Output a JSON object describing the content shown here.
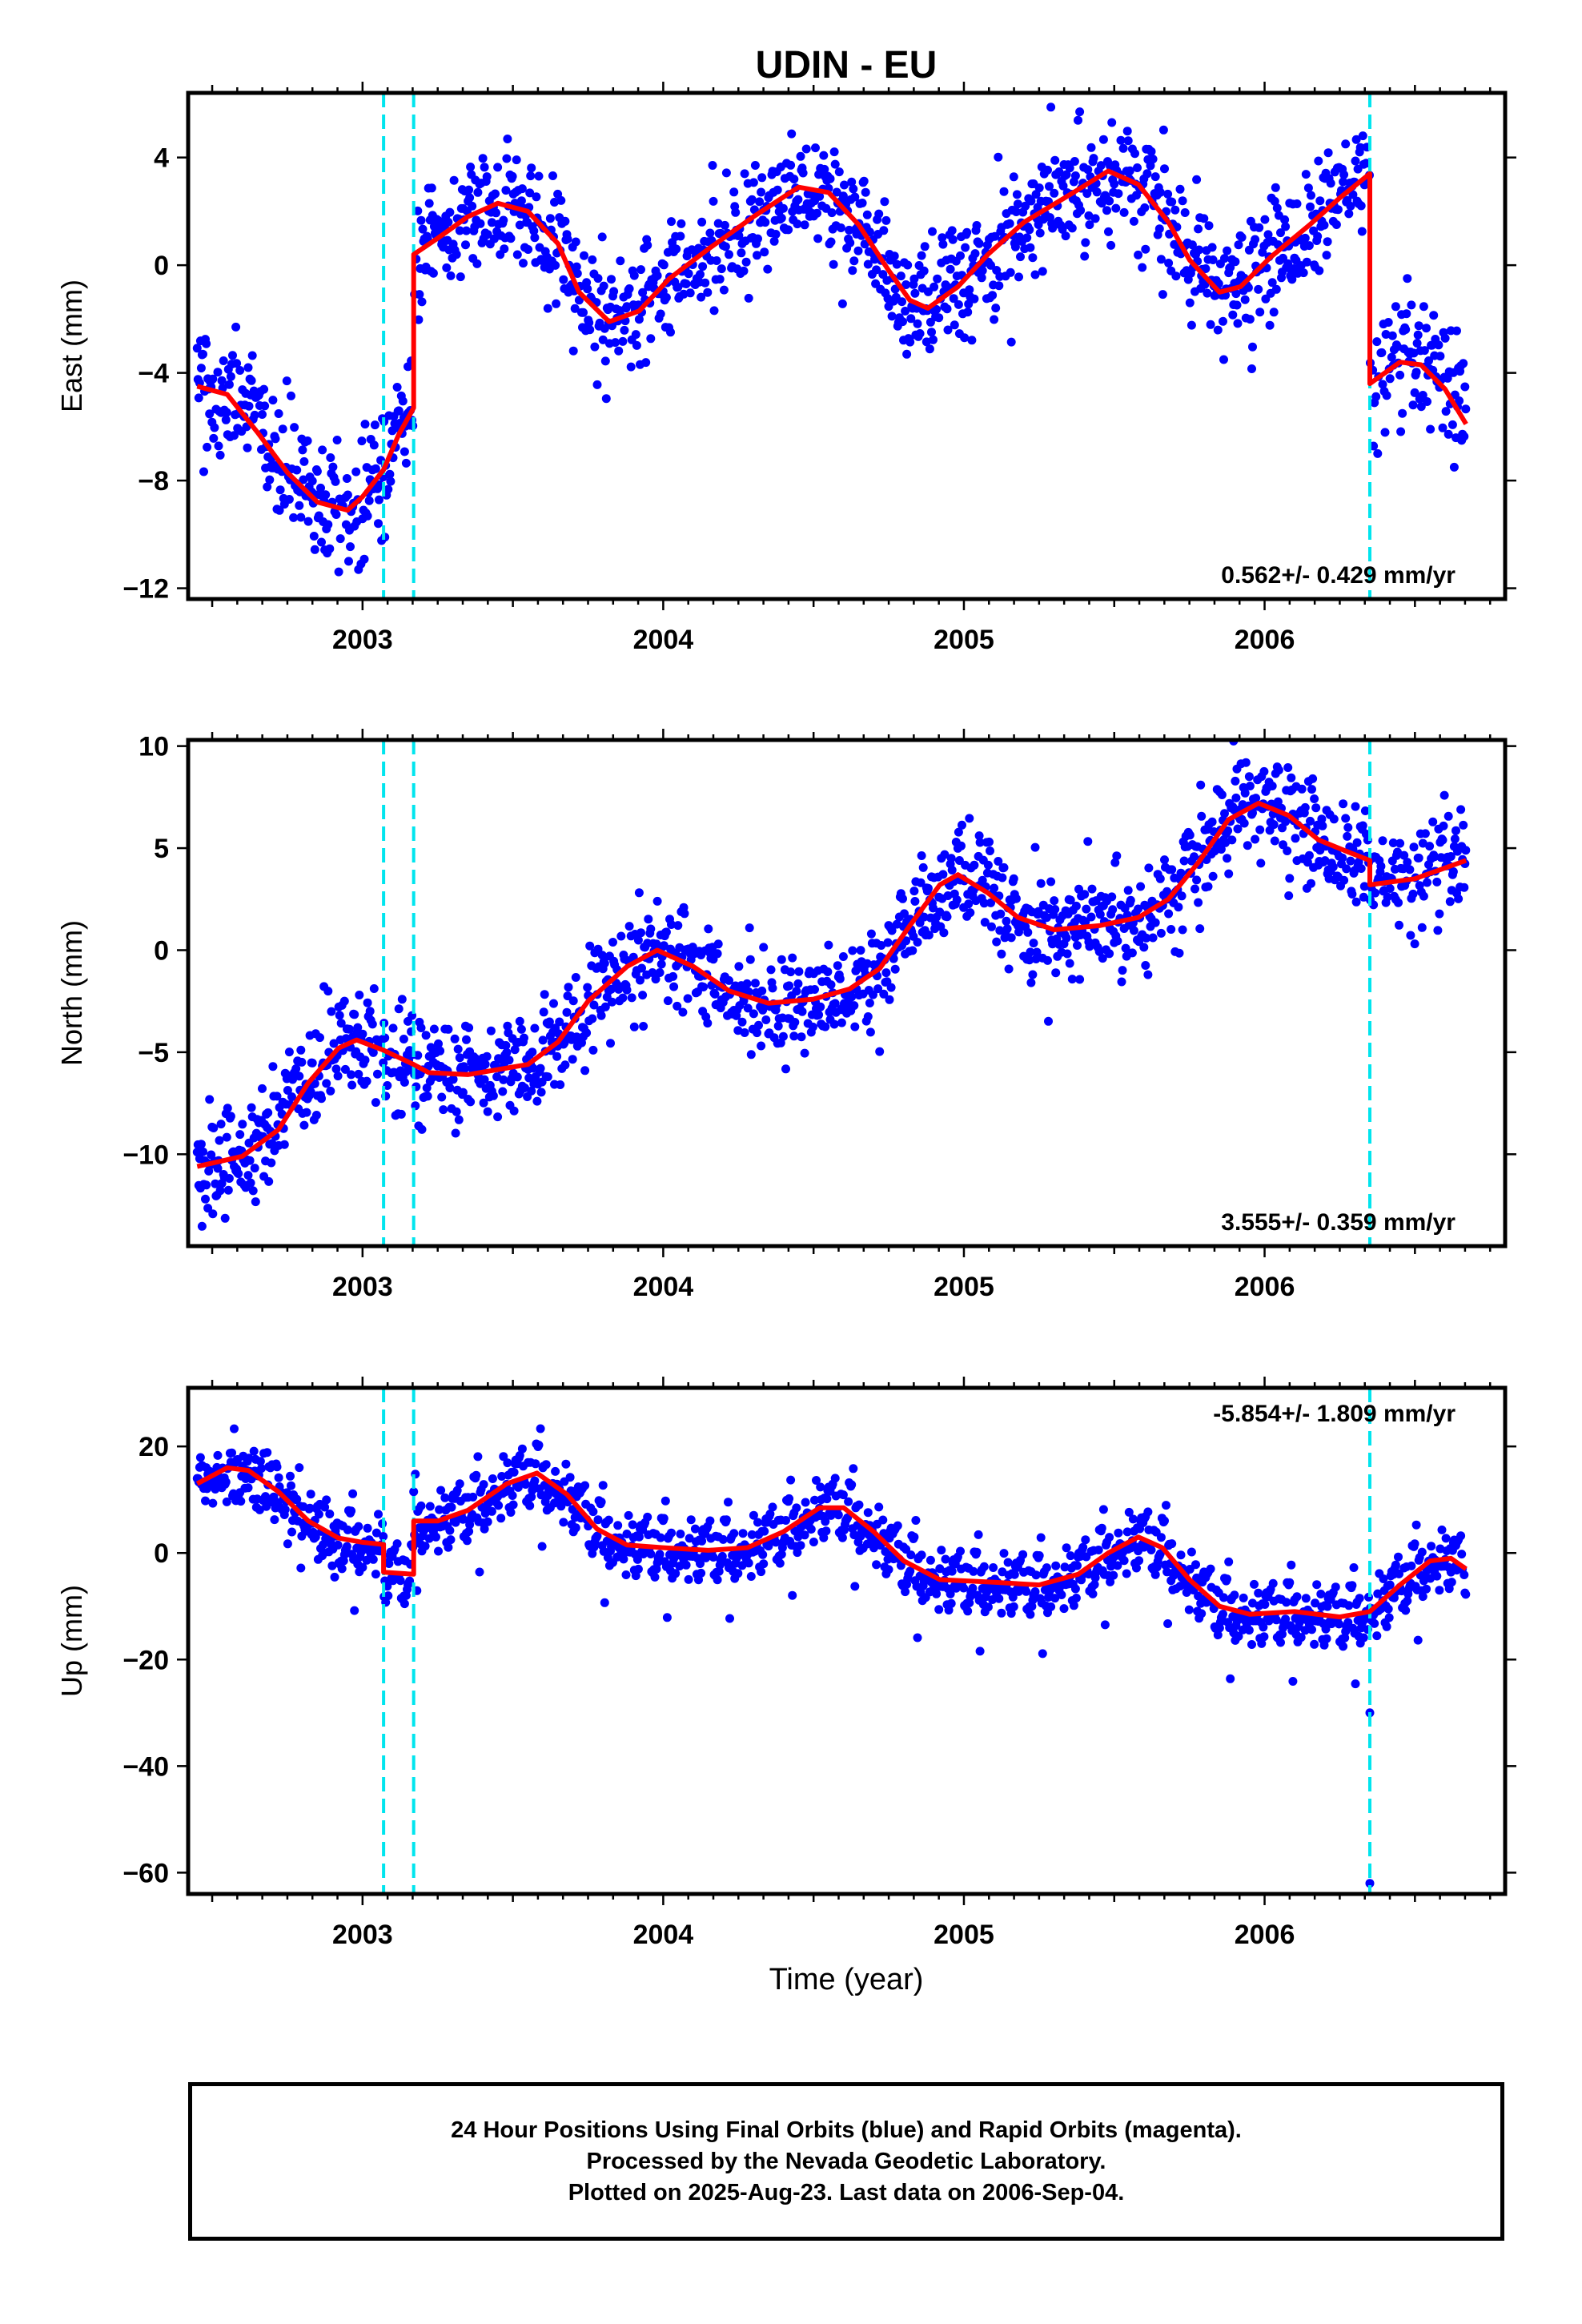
{
  "title": "UDIN - EU",
  "xlabel": "Time (year)",
  "colors": {
    "points": "#0000ff",
    "model": "#ff0000",
    "steps": "#00e5ee",
    "frame": "#000000"
  },
  "caption": {
    "line1": "24 Hour Positions Using Final Orbits (blue) and Rapid Orbits (magenta).",
    "line2": "Processed by the Nevada Geodetic Laboratory.",
    "line3": "Plotted on 2025-Aug-23. Last data on 2006-Sep-04."
  },
  "chart_data": [
    {
      "type": "scatter",
      "ylabel": "East (mm)",
      "rate_text": "0.562+/- 0.429 mm/yr",
      "rate_position": "bottom-right",
      "xlim": [
        2002.42,
        2006.8
      ],
      "ylim": [
        -12.4,
        6.4
      ],
      "xticks": [
        2003,
        2004,
        2005,
        2006
      ],
      "yticks": [
        -12,
        -8,
        -4,
        0,
        4
      ],
      "step_lines": [
        2003.07,
        2003.17,
        2006.35
      ],
      "model": [
        [
          2002.45,
          -4.5
        ],
        [
          2002.55,
          -4.8
        ],
        [
          2002.65,
          -6.2
        ],
        [
          2002.75,
          -7.7
        ],
        [
          2002.85,
          -8.8
        ],
        [
          2002.95,
          -9.1
        ],
        [
          2003.0,
          -8.6
        ],
        [
          2003.07,
          -7.6
        ],
        [
          2003.12,
          -6.3
        ],
        [
          2003.17,
          -5.3
        ],
        [
          2003.17,
          0.4
        ],
        [
          2003.25,
          1.0
        ],
        [
          2003.35,
          1.8
        ],
        [
          2003.45,
          2.3
        ],
        [
          2003.55,
          2.0
        ],
        [
          2003.65,
          0.8
        ],
        [
          2003.72,
          -1.0
        ],
        [
          2003.82,
          -2.1
        ],
        [
          2003.92,
          -1.7
        ],
        [
          2004.02,
          -0.5
        ],
        [
          2004.15,
          0.6
        ],
        [
          2004.3,
          1.8
        ],
        [
          2004.45,
          2.9
        ],
        [
          2004.55,
          2.7
        ],
        [
          2004.65,
          1.5
        ],
        [
          2004.75,
          -0.2
        ],
        [
          2004.82,
          -1.3
        ],
        [
          2004.88,
          -1.6
        ],
        [
          2004.98,
          -0.8
        ],
        [
          2005.08,
          0.4
        ],
        [
          2005.2,
          1.6
        ],
        [
          2005.35,
          2.6
        ],
        [
          2005.48,
          3.5
        ],
        [
          2005.58,
          3.0
        ],
        [
          2005.68,
          1.6
        ],
        [
          2005.75,
          0.2
        ],
        [
          2005.85,
          -1.0
        ],
        [
          2005.92,
          -0.8
        ],
        [
          2006.02,
          0.3
        ],
        [
          2006.15,
          1.5
        ],
        [
          2006.25,
          2.5
        ],
        [
          2006.35,
          3.4
        ],
        [
          2006.35,
          -4.4
        ],
        [
          2006.45,
          -3.6
        ],
        [
          2006.52,
          -3.7
        ],
        [
          2006.6,
          -4.6
        ],
        [
          2006.67,
          -5.9
        ]
      ],
      "noise_sd": 1.1
    },
    {
      "type": "scatter",
      "ylabel": "North (mm)",
      "rate_text": "3.555+/- 0.359 mm/yr",
      "rate_position": "bottom-right",
      "xlim": [
        2002.42,
        2006.8
      ],
      "ylim": [
        -14.5,
        10.3
      ],
      "xticks": [
        2003,
        2004,
        2005,
        2006
      ],
      "yticks": [
        -10,
        -5,
        0,
        5,
        10
      ],
      "step_lines": [
        2003.07,
        2003.17,
        2006.35
      ],
      "model": [
        [
          2002.45,
          -10.6
        ],
        [
          2002.6,
          -10.1
        ],
        [
          2002.72,
          -8.8
        ],
        [
          2002.82,
          -6.5
        ],
        [
          2002.92,
          -4.8
        ],
        [
          2002.98,
          -4.4
        ],
        [
          2003.07,
          -4.9
        ],
        [
          2003.17,
          -5.6
        ],
        [
          2003.22,
          -6.0
        ],
        [
          2003.35,
          -6.1
        ],
        [
          2003.55,
          -5.6
        ],
        [
          2003.65,
          -4.5
        ],
        [
          2003.75,
          -2.5
        ],
        [
          2003.88,
          -0.8
        ],
        [
          2003.98,
          0.0
        ],
        [
          2004.1,
          -0.8
        ],
        [
          2004.22,
          -2.0
        ],
        [
          2004.35,
          -2.6
        ],
        [
          2004.5,
          -2.4
        ],
        [
          2004.62,
          -1.9
        ],
        [
          2004.72,
          -0.9
        ],
        [
          2004.82,
          1.2
        ],
        [
          2004.92,
          3.2
        ],
        [
          2004.98,
          3.7
        ],
        [
          2005.08,
          2.8
        ],
        [
          2005.18,
          1.6
        ],
        [
          2005.3,
          1.0
        ],
        [
          2005.45,
          1.2
        ],
        [
          2005.58,
          1.6
        ],
        [
          2005.68,
          2.5
        ],
        [
          2005.78,
          4.3
        ],
        [
          2005.88,
          6.4
        ],
        [
          2005.98,
          7.2
        ],
        [
          2006.08,
          6.6
        ],
        [
          2006.18,
          5.4
        ],
        [
          2006.28,
          4.8
        ],
        [
          2006.35,
          4.4
        ],
        [
          2006.35,
          3.2
        ],
        [
          2006.5,
          3.5
        ],
        [
          2006.67,
          4.4
        ]
      ],
      "noise_sd": 1.25
    },
    {
      "type": "scatter",
      "ylabel": "Up (mm)",
      "rate_text": "-5.854+/- 1.809 mm/yr",
      "rate_position": "top-right",
      "xlim": [
        2002.42,
        2006.8
      ],
      "ylim": [
        -64,
        31
      ],
      "xticks": [
        2003,
        2004,
        2005,
        2006
      ],
      "yticks": [
        -60,
        -40,
        -20,
        0,
        20
      ],
      "step_lines": [
        2003.07,
        2003.17,
        2006.35
      ],
      "model": [
        [
          2002.45,
          13
        ],
        [
          2002.55,
          16
        ],
        [
          2002.62,
          15.5
        ],
        [
          2002.72,
          11.5
        ],
        [
          2002.82,
          6
        ],
        [
          2002.92,
          2.8
        ],
        [
          2003.0,
          2
        ],
        [
          2003.07,
          1.6
        ],
        [
          2003.07,
          -3.6
        ],
        [
          2003.17,
          -4
        ],
        [
          2003.17,
          6
        ],
        [
          2003.25,
          6
        ],
        [
          2003.35,
          8
        ],
        [
          2003.48,
          13
        ],
        [
          2003.58,
          15
        ],
        [
          2003.68,
          11
        ],
        [
          2003.78,
          4.5
        ],
        [
          2003.88,
          1.5
        ],
        [
          2004.0,
          1
        ],
        [
          2004.15,
          0.5
        ],
        [
          2004.28,
          1
        ],
        [
          2004.4,
          4
        ],
        [
          2004.52,
          8.5
        ],
        [
          2004.6,
          8.5
        ],
        [
          2004.7,
          4
        ],
        [
          2004.8,
          -1.5
        ],
        [
          2004.92,
          -5
        ],
        [
          2005.1,
          -5.5
        ],
        [
          2005.25,
          -6
        ],
        [
          2005.38,
          -4
        ],
        [
          2005.48,
          0
        ],
        [
          2005.58,
          3
        ],
        [
          2005.66,
          1
        ],
        [
          2005.75,
          -5
        ],
        [
          2005.85,
          -10
        ],
        [
          2005.95,
          -11.5
        ],
        [
          2006.1,
          -11
        ],
        [
          2006.25,
          -12
        ],
        [
          2006.35,
          -11
        ],
        [
          2006.45,
          -6
        ],
        [
          2006.55,
          -1.5
        ],
        [
          2006.62,
          -1
        ],
        [
          2006.67,
          -3
        ]
      ],
      "noise_sd": 3.3,
      "outliers": [
        [
          2006.35,
          -62
        ],
        [
          2006.35,
          -30
        ]
      ]
    }
  ]
}
